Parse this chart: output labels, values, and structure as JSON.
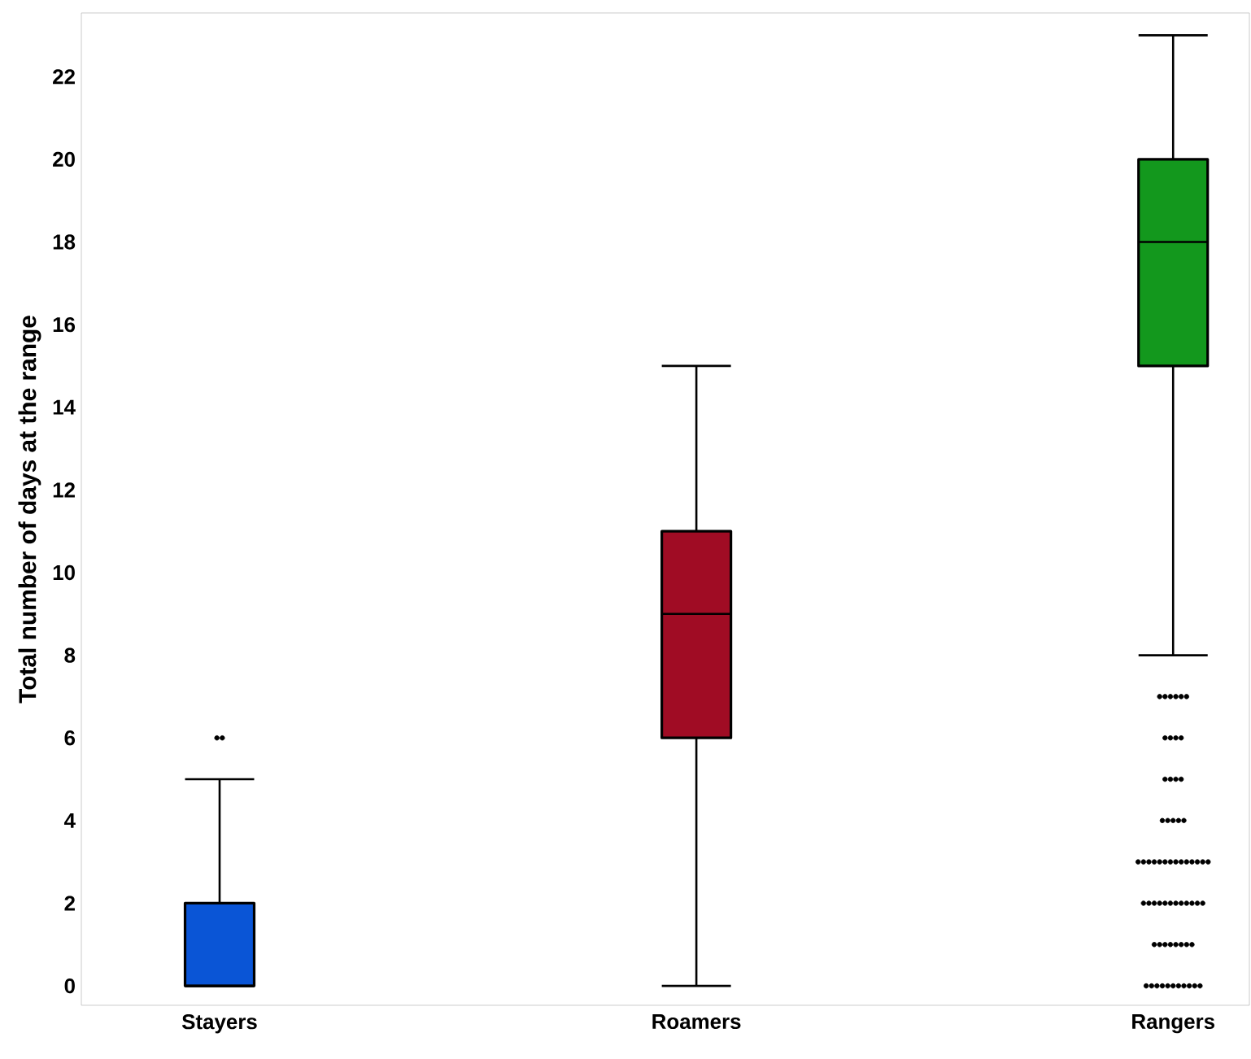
{
  "chart_data": {
    "type": "box",
    "ylabel": "Total number of days at the range",
    "categories": [
      "Stayers",
      "Roamers",
      "Rangers"
    ],
    "colors": [
      "#0a55d6",
      "#a00c24",
      "#13981d"
    ],
    "boxes": [
      {
        "low": 0,
        "q1": 0,
        "median": 0,
        "q3": 2,
        "high": 5,
        "outliers": [
          6,
          6
        ]
      },
      {
        "low": 0,
        "q1": 6,
        "median": 9,
        "q3": 11,
        "high": 15
      },
      {
        "low": 8,
        "q1": 15,
        "median": 18,
        "q3": 20,
        "high": 23,
        "outliers": [
          7,
          7,
          7,
          7,
          7,
          7,
          6,
          6,
          6,
          6,
          5,
          5,
          5,
          5,
          4,
          4,
          4,
          4,
          4,
          3,
          3,
          3,
          3,
          3,
          3,
          3,
          3,
          3,
          3,
          3,
          3,
          3,
          3,
          2,
          2,
          2,
          2,
          2,
          2,
          2,
          2,
          2,
          2,
          2,
          2,
          1,
          1,
          1,
          1,
          1,
          1,
          1,
          1,
          0,
          0,
          0,
          0,
          0,
          0,
          0,
          0,
          0,
          0,
          0
        ]
      }
    ],
    "ylim": [
      -0.47,
      23.54
    ],
    "yticks": [
      0,
      2,
      4,
      6,
      8,
      10,
      12,
      14,
      16,
      18,
      20,
      22
    ],
    "grid": false,
    "marker": "circle"
  }
}
